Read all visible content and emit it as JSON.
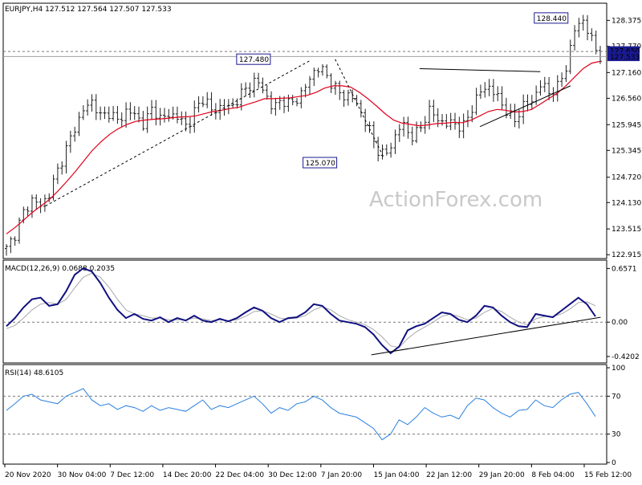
{
  "header": {
    "symbol_line": "EURJPY,H4  127.512 127.564 127.507 127.533"
  },
  "watermark": "ActionForex.com",
  "colors": {
    "candle": "#1f1f1f",
    "sma": "#e0001a",
    "macd_line": "#101080",
    "macd_signal": "#a8a8a8",
    "rsi": "#2a80e0",
    "price_label_bg": "#1a1a90",
    "grid_dash": "#7a7a7a"
  },
  "chart_data": [
    {
      "type": "candlestick",
      "title": "EURJPY,H4",
      "ohlc_last": {
        "open": 127.512,
        "high": 127.564,
        "low": 127.507,
        "close": 127.533
      },
      "x_ticks": [
        "20 Nov 2020",
        "30 Nov 04:00",
        "7 Dec 12:00",
        "14 Dec 20:00",
        "22 Dec 04:00",
        "30 Dec 12:00",
        "7 Jan 20:00",
        "15 Jan 04:00",
        "22 Jan 12:00",
        "29 Jan 20:00",
        "8 Feb 04:00",
        "15 Feb 12:00"
      ],
      "y_ticks": [
        "128.375",
        "127.770",
        "127.160",
        "126.560",
        "125.945",
        "125.345",
        "124.720",
        "124.130",
        "123.515",
        "122.915"
      ],
      "ylim": [
        122.9,
        128.7
      ],
      "current_price_label": "127.533",
      "reference_level_label": "127.650",
      "annotations": [
        {
          "text": "127.480",
          "price": 127.48
        },
        {
          "text": "125.070",
          "price": 125.07
        },
        {
          "text": "128.440",
          "price": 128.44
        }
      ],
      "close_path": [
        123.05,
        123.4,
        123.9,
        124.2,
        124.05,
        124.35,
        124.9,
        125.4,
        125.9,
        126.3,
        126.5,
        126.1,
        126.25,
        126.0,
        126.3,
        126.15,
        125.95,
        126.35,
        126.05,
        126.2,
        126.1,
        125.9,
        126.3,
        126.6,
        126.2,
        126.4,
        126.3,
        126.6,
        126.8,
        127.0,
        126.7,
        126.3,
        126.55,
        126.4,
        126.6,
        126.9,
        127.3,
        127.15,
        126.85,
        126.6,
        126.65,
        126.3,
        125.9,
        125.4,
        125.2,
        125.6,
        126.0,
        125.65,
        125.8,
        126.3,
        126.1,
        125.95,
        126.0,
        125.85,
        126.3,
        126.7,
        126.85,
        126.6,
        126.3,
        126.0,
        126.4,
        126.45,
        126.9,
        126.7,
        126.8,
        127.25,
        128.15,
        128.4,
        127.9,
        127.53
      ],
      "sma_path": [
        123.4,
        123.55,
        123.72,
        123.9,
        124.05,
        124.2,
        124.4,
        124.62,
        124.85,
        125.1,
        125.35,
        125.55,
        125.72,
        125.85,
        125.95,
        126.02,
        126.05,
        126.07,
        126.08,
        126.1,
        126.12,
        126.13,
        126.15,
        126.2,
        126.25,
        126.28,
        126.32,
        126.35,
        126.42,
        126.48,
        126.55,
        126.55,
        126.56,
        126.57,
        126.6,
        126.63,
        126.7,
        126.8,
        126.85,
        126.85,
        126.82,
        126.7,
        126.55,
        126.38,
        126.2,
        126.05,
        125.98,
        125.95,
        125.92,
        125.94,
        125.97,
        125.98,
        126.0,
        125.99,
        126.05,
        126.15,
        126.25,
        126.3,
        126.28,
        126.24,
        126.25,
        126.3,
        126.42,
        126.55,
        126.68,
        126.85,
        127.05,
        127.25,
        127.38,
        127.42
      ],
      "trendlines": [
        {
          "from": [
            0.07,
            124.05
          ],
          "to": [
            0.51,
            127.45
          ]
        },
        {
          "from": [
            0.55,
            127.47
          ],
          "to": [
            0.63,
            125.2
          ]
        },
        {
          "from": [
            0.69,
            127.25
          ],
          "to": [
            0.89,
            127.18
          ]
        },
        {
          "from": [
            0.79,
            125.9
          ],
          "to": [
            0.94,
            126.85
          ]
        }
      ]
    },
    {
      "type": "line",
      "title": "MACD(12,26,9) 0.0688 0.2035",
      "legend_text": "MACD(12,26,9) 0.0688 0.2035",
      "y_ticks": [
        "0.6571",
        "0.00",
        "-0.4202"
      ],
      "ylim": [
        -0.46,
        0.7
      ],
      "value_label": "0.0688",
      "macd_path": [
        -0.05,
        0.05,
        0.18,
        0.28,
        0.3,
        0.2,
        0.22,
        0.38,
        0.58,
        0.66,
        0.62,
        0.48,
        0.3,
        0.15,
        0.05,
        0.1,
        0.04,
        0.02,
        0.06,
        0.0,
        0.05,
        0.02,
        0.08,
        0.02,
        0.0,
        0.04,
        0.01,
        0.05,
        0.12,
        0.18,
        0.14,
        0.05,
        0.0,
        0.05,
        0.06,
        0.12,
        0.22,
        0.2,
        0.1,
        0.02,
        0.0,
        -0.02,
        -0.06,
        -0.15,
        -0.28,
        -0.38,
        -0.3,
        -0.1,
        -0.05,
        -0.02,
        0.05,
        0.12,
        0.1,
        0.03,
        0.0,
        0.08,
        0.2,
        0.18,
        0.08,
        0.0,
        -0.05,
        -0.06,
        0.1,
        0.08,
        0.06,
        0.14,
        0.22,
        0.3,
        0.22,
        0.07
      ],
      "signal_path": [
        -0.08,
        -0.04,
        0.05,
        0.15,
        0.22,
        0.24,
        0.22,
        0.28,
        0.42,
        0.55,
        0.6,
        0.55,
        0.43,
        0.28,
        0.15,
        0.1,
        0.08,
        0.05,
        0.05,
        0.03,
        0.03,
        0.03,
        0.05,
        0.04,
        0.02,
        0.03,
        0.02,
        0.03,
        0.07,
        0.13,
        0.14,
        0.1,
        0.05,
        0.04,
        0.05,
        0.08,
        0.15,
        0.19,
        0.15,
        0.08,
        0.03,
        0.0,
        -0.03,
        -0.09,
        -0.18,
        -0.29,
        -0.31,
        -0.2,
        -0.12,
        -0.06,
        0.0,
        0.07,
        0.1,
        0.07,
        0.03,
        0.05,
        0.12,
        0.17,
        0.13,
        0.06,
        0.0,
        -0.03,
        0.04,
        0.07,
        0.07,
        0.1,
        0.16,
        0.24,
        0.25,
        0.2
      ],
      "trendline": {
        "from": [
          0.61,
          -0.4
        ],
        "to": [
          0.99,
          0.06
        ]
      }
    },
    {
      "type": "line",
      "title": "RSI(14) 48.6105",
      "legend_text": "RSI(14) 48.6105",
      "y_ticks": [
        "100",
        "70",
        "30",
        "0"
      ],
      "ylim": [
        0,
        100
      ],
      "levels": [
        70,
        30
      ],
      "rsi_path": [
        55,
        62,
        70,
        72,
        66,
        64,
        62,
        70,
        74,
        78,
        66,
        60,
        62,
        56,
        60,
        58,
        54,
        60,
        55,
        58,
        56,
        54,
        60,
        66,
        56,
        60,
        58,
        62,
        66,
        70,
        62,
        52,
        58,
        55,
        62,
        64,
        70,
        66,
        58,
        52,
        50,
        48,
        42,
        36,
        24,
        30,
        45,
        40,
        48,
        58,
        52,
        48,
        50,
        46,
        60,
        68,
        66,
        58,
        52,
        48,
        55,
        56,
        66,
        60,
        58,
        66,
        72,
        74,
        62,
        48.6
      ]
    }
  ]
}
